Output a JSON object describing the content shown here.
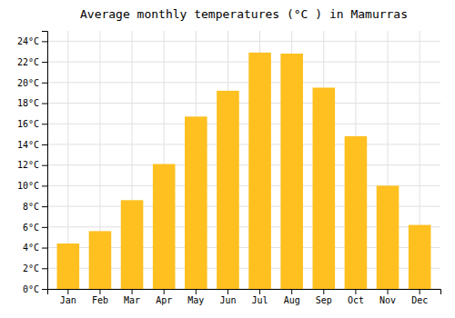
{
  "chart_data": {
    "type": "bar",
    "title": "Average monthly temperatures (°C ) in Mamurras",
    "categories": [
      "Jan",
      "Feb",
      "Mar",
      "Apr",
      "May",
      "Jun",
      "Jul",
      "Aug",
      "Sep",
      "Oct",
      "Nov",
      "Dec"
    ],
    "values": [
      4.4,
      5.6,
      8.6,
      12.1,
      16.7,
      19.2,
      22.9,
      22.8,
      19.5,
      14.8,
      10.0,
      6.2
    ],
    "color": "#FFC020",
    "ylim": [
      0,
      25
    ],
    "yticks": [
      {
        "value": 0,
        "label": "0°C"
      },
      {
        "value": 2,
        "label": "2°C"
      },
      {
        "value": 4,
        "label": "4°C"
      },
      {
        "value": 6,
        "label": "6°C"
      },
      {
        "value": 8,
        "label": "8°C"
      },
      {
        "value": 10,
        "label": "10°C"
      },
      {
        "value": 12,
        "label": "12°C"
      },
      {
        "value": 14,
        "label": "14°C"
      },
      {
        "value": 16,
        "label": "16°C"
      },
      {
        "value": 18,
        "label": "18°C"
      },
      {
        "value": 20,
        "label": "20°C"
      },
      {
        "value": 22,
        "label": "22°C"
      },
      {
        "value": 24,
        "label": "24°C"
      }
    ],
    "grid": true
  }
}
